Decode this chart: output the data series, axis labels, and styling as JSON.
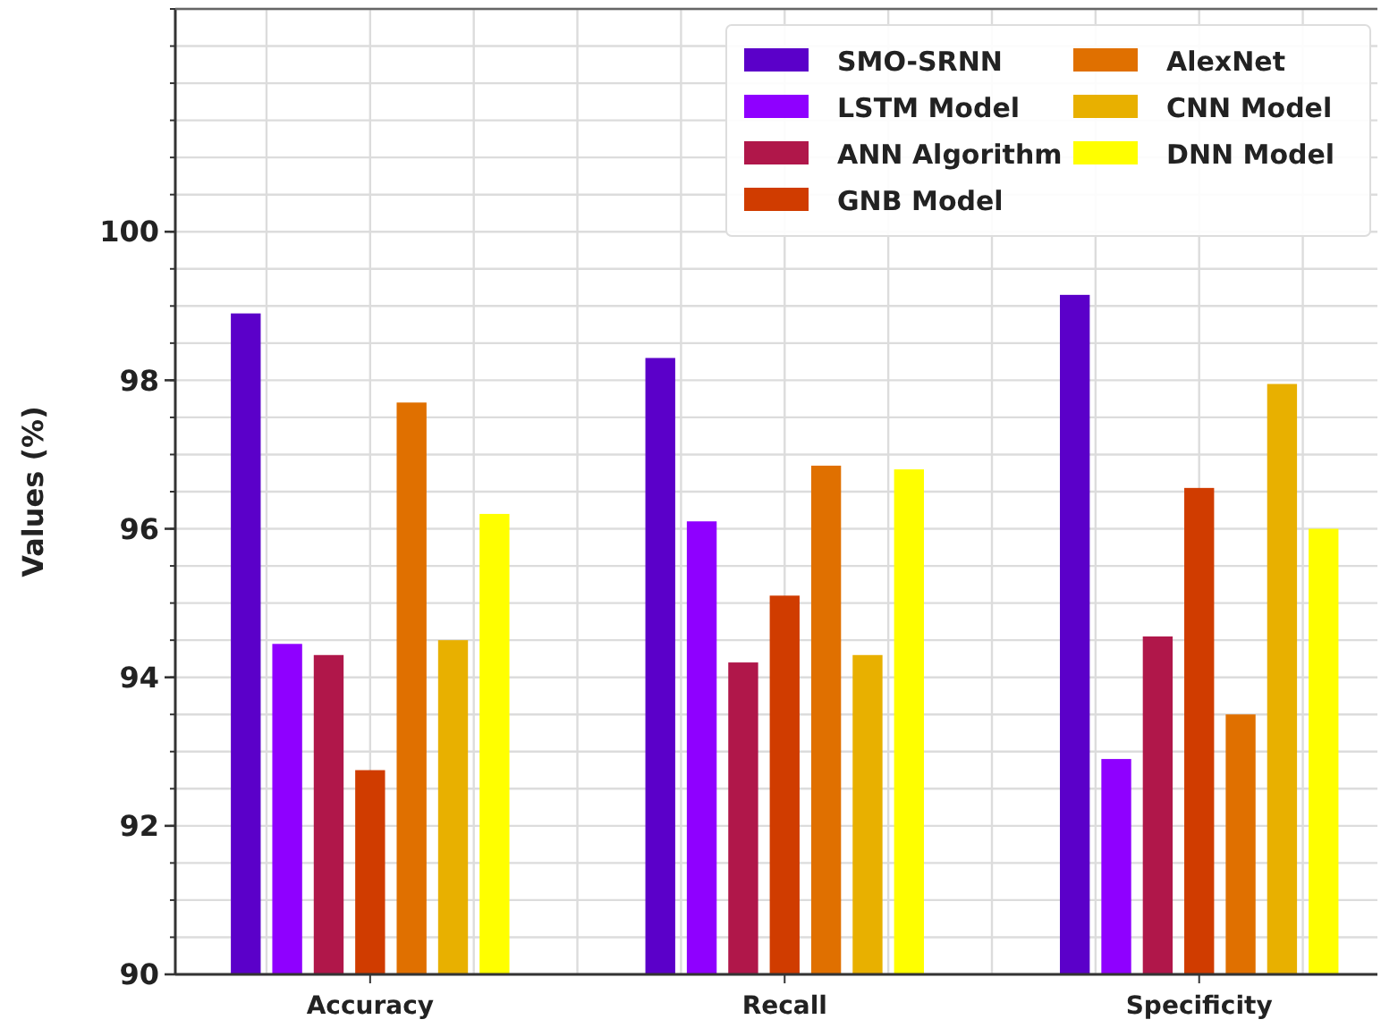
{
  "chart_data": {
    "type": "bar",
    "ylabel": "Values (%)",
    "categories": [
      "Accuracy",
      "Recall",
      "Specificity"
    ],
    "series": [
      {
        "name": "SMO-SRNN",
        "color": "#5b00c9",
        "values": [
          98.9,
          98.3,
          99.15
        ]
      },
      {
        "name": "LSTM Model",
        "color": "#8f00ff",
        "values": [
          94.45,
          96.1,
          92.9
        ]
      },
      {
        "name": "ANN Algorithm",
        "color": "#b0174a",
        "values": [
          94.3,
          94.2,
          94.55
        ]
      },
      {
        "name": "GNB Model",
        "color": "#d03c00",
        "values": [
          92.75,
          95.1,
          96.55
        ]
      },
      {
        "name": "AlexNet",
        "color": "#e07000",
        "values": [
          97.7,
          96.85,
          93.5
        ]
      },
      {
        "name": "CNN Model",
        "color": "#e8b000",
        "values": [
          94.5,
          94.3,
          97.95
        ]
      },
      {
        "name": "DNN Model",
        "color": "#ffff00",
        "values": [
          96.2,
          96.8,
          96.0
        ]
      }
    ],
    "ylim": [
      90,
      103
    ],
    "yticks": [
      90,
      92,
      94,
      96,
      98,
      100
    ],
    "grid": true,
    "legend": "top right"
  }
}
